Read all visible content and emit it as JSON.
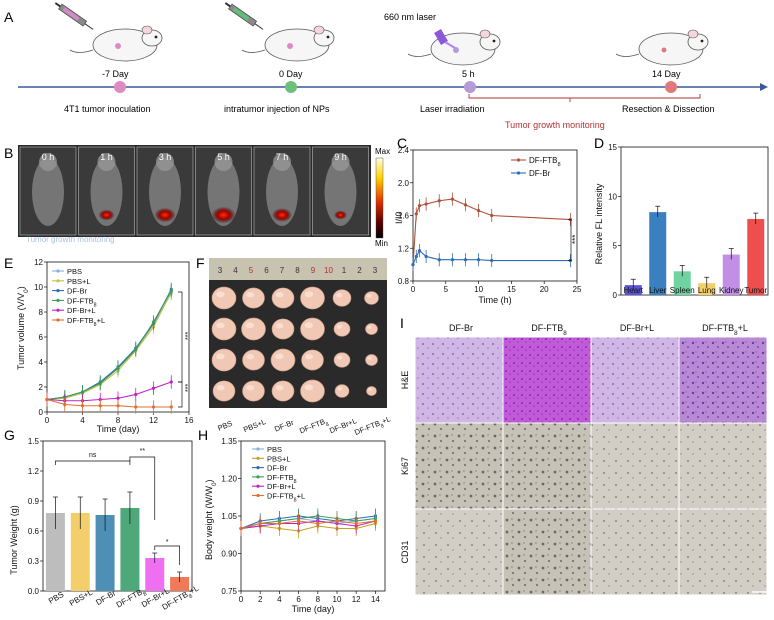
{
  "panel_labels": [
    "A",
    "B",
    "C",
    "D",
    "E",
    "F",
    "G",
    "H",
    "I"
  ],
  "timeline": {
    "laser_label": "660 nm laser",
    "points": [
      {
        "day": "-7 Day",
        "event": "4T1 tumor inoculation",
        "color": "#e08ac4"
      },
      {
        "day": "0 Day",
        "event": "intratumor injection of NPs",
        "color": "#6cc07a"
      },
      {
        "day": "5 h",
        "event": "Laser irradiation",
        "color": "#b59bd8"
      },
      {
        "day": "14 Day",
        "event": "Resection & Dissection",
        "color": "#e07a7a"
      }
    ],
    "monitoring_label": "Tumor growth monitoring"
  },
  "imaging": {
    "times": [
      "0 h",
      "1 h",
      "3 h",
      "5 h",
      "7 h",
      "9 h"
    ],
    "scale_max": "Max",
    "scale_min": "Min",
    "overlay_text": "Tumor growth monitoring"
  },
  "panelC": {
    "legend": [
      "DF-FTB8",
      "DF-Br"
    ],
    "ylabel": "I/I0",
    "xlabel": "Time (h)",
    "sig": "***",
    "chart_data": {
      "type": "line",
      "x": [
        0,
        0.5,
        1,
        2,
        4,
        6,
        8,
        10,
        12,
        24
      ],
      "series": [
        {
          "name": "DF-FTB8",
          "color": "#b0503a",
          "values": [
            1.0,
            1.62,
            1.72,
            1.74,
            1.78,
            1.8,
            1.73,
            1.66,
            1.6,
            1.55
          ]
        },
        {
          "name": "DF-Br",
          "color": "#2f6db5",
          "values": [
            1.0,
            1.1,
            1.17,
            1.1,
            1.06,
            1.06,
            1.06,
            1.06,
            1.05,
            1.05
          ]
        }
      ],
      "xlim": [
        0,
        25
      ],
      "ylim": [
        0.8,
        2.4
      ],
      "xticks": [
        0,
        5,
        10,
        15,
        20,
        25
      ],
      "yticks": [
        0.8,
        1.2,
        1.6,
        2.0,
        2.4
      ]
    }
  },
  "panelD": {
    "ylabel": "Relative FL intensity",
    "chart_data": {
      "type": "bar",
      "categories": [
        "Heart",
        "Liver",
        "Spleen",
        "Lung",
        "Kidney",
        "Tumor"
      ],
      "values": [
        1.0,
        8.4,
        2.4,
        1.2,
        4.1,
        7.7
      ],
      "colors": [
        "#5a55d6",
        "#3a7fbf",
        "#6fd3a0",
        "#f3cf6c",
        "#c28ee6",
        "#ef4e4e"
      ],
      "ylim": [
        0,
        15
      ],
      "yticks": [
        0,
        5,
        10,
        15
      ]
    }
  },
  "panelE": {
    "ylabel": "Tumor volume (V/V0)",
    "xlabel": "Time (day)",
    "sig": "***",
    "legend": [
      "PBS",
      "PBS+L",
      "DF-Br",
      "DF-FTB8",
      "DF-Br+L",
      "DF-FTB8+L"
    ],
    "chart_data": {
      "type": "line",
      "x": [
        0,
        2,
        4,
        6,
        8,
        10,
        12,
        14
      ],
      "series": [
        {
          "name": "PBS",
          "color": "#8ab0d8",
          "values": [
            1.0,
            1.2,
            1.6,
            2.3,
            3.5,
            5.0,
            7.0,
            9.5
          ]
        },
        {
          "name": "PBS+L",
          "color": "#c6c040",
          "values": [
            1.0,
            1.1,
            1.5,
            2.2,
            3.3,
            4.9,
            6.8,
            9.6
          ]
        },
        {
          "name": "DF-Br",
          "color": "#2f6db5",
          "values": [
            1.0,
            1.2,
            1.6,
            2.4,
            3.6,
            5.1,
            7.1,
            9.8
          ]
        },
        {
          "name": "DF-FTB8",
          "color": "#3a9e58",
          "values": [
            1.0,
            1.2,
            1.6,
            2.3,
            3.5,
            5.0,
            7.2,
            9.7
          ]
        },
        {
          "name": "DF-Br+L",
          "color": "#c020c8",
          "values": [
            1.0,
            0.9,
            0.9,
            1.0,
            1.1,
            1.4,
            1.9,
            2.4
          ]
        },
        {
          "name": "DF-FTB8+L",
          "color": "#e07030",
          "values": [
            1.0,
            0.6,
            0.5,
            0.5,
            0.5,
            0.4,
            0.4,
            0.4
          ]
        }
      ],
      "xlim": [
        0,
        16
      ],
      "ylim": [
        0,
        12
      ],
      "xticks": [
        0,
        4,
        8,
        12,
        16
      ],
      "yticks": [
        0,
        2,
        4,
        6,
        8,
        10,
        12
      ]
    }
  },
  "panelF": {
    "ruler": [
      "3",
      "4",
      "5",
      "6",
      "7",
      "8",
      "9",
      "10",
      "1",
      "2",
      "3"
    ],
    "labels": [
      "PBS",
      "PBS+L",
      "DF-Br",
      "DF-FTB8",
      "DF-Br+L",
      "DF-FTB8+L"
    ]
  },
  "panelG": {
    "ylabel": "Tumor Weight (g)",
    "sig": [
      "ns",
      "**",
      "*"
    ],
    "chart_data": {
      "type": "bar",
      "categories": [
        "PBS",
        "PBS+L",
        "DF-Br",
        "DF-FTB8",
        "DF-Br+L",
        "DF-FTB8+L"
      ],
      "values": [
        0.78,
        0.78,
        0.76,
        0.83,
        0.33,
        0.14
      ],
      "colors": [
        "#bdbdbd",
        "#f3cf6c",
        "#4d8fb5",
        "#4ea879",
        "#ef6ff0",
        "#ef7a5a"
      ],
      "ylim": [
        0,
        1.5
      ],
      "yticks": [
        0.0,
        0.3,
        0.6,
        0.9,
        1.2,
        1.5
      ]
    }
  },
  "panelH": {
    "ylabel": "Body weight (W/W0)",
    "xlabel": "Time (day)",
    "legend": [
      "PBS",
      "PBS+L",
      "DF-Br",
      "DF-FTB8",
      "DF-Br+L",
      "DF-FTB8+L"
    ],
    "chart_data": {
      "type": "line",
      "x": [
        0,
        2,
        4,
        6,
        8,
        10,
        12,
        14
      ],
      "series": [
        {
          "name": "PBS",
          "color": "#8ab0d8",
          "values": [
            1.0,
            1.02,
            1.03,
            1.04,
            1.03,
            1.02,
            1.03,
            1.04
          ]
        },
        {
          "name": "PBS+L",
          "color": "#c6a020",
          "values": [
            1.0,
            1.01,
            1.0,
            0.99,
            1.01,
            1.0,
            1.0,
            1.02
          ]
        },
        {
          "name": "DF-Br",
          "color": "#2f6db5",
          "values": [
            1.0,
            1.03,
            1.04,
            1.05,
            1.04,
            1.03,
            1.04,
            1.05
          ]
        },
        {
          "name": "DF-FTB8",
          "color": "#3a9e58",
          "values": [
            1.0,
            1.02,
            1.03,
            1.04,
            1.05,
            1.04,
            1.03,
            1.04
          ]
        },
        {
          "name": "DF-Br+L",
          "color": "#c020c8",
          "values": [
            1.0,
            1.01,
            1.02,
            1.02,
            1.03,
            1.02,
            1.01,
            1.03
          ]
        },
        {
          "name": "DF-FTB8+L",
          "color": "#e07030",
          "values": [
            1.0,
            1.02,
            1.02,
            1.03,
            1.02,
            1.03,
            1.02,
            1.03
          ]
        }
      ],
      "xlim": [
        0,
        15
      ],
      "ylim": [
        0.75,
        1.35
      ],
      "xticks": [
        0,
        2,
        4,
        6,
        8,
        10,
        12,
        14
      ],
      "yticks": [
        0.75,
        0.9,
        1.05,
        1.2,
        1.35
      ]
    }
  },
  "panelI": {
    "columns": [
      "DF-Br",
      "DF-FTB8",
      "DF-Br+L",
      "DF-FTB8+L"
    ],
    "rows": [
      "H&E",
      "Ki67",
      "CD31"
    ]
  }
}
